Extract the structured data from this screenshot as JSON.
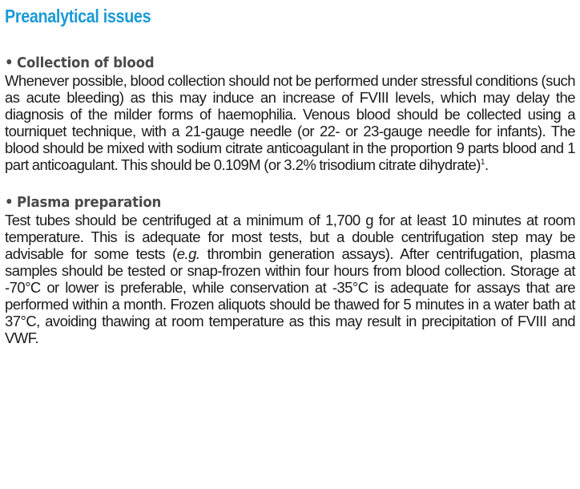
{
  "document": {
    "title": "Preanalytical issues",
    "sections": [
      {
        "bullet": "•",
        "heading": "Collection of blood",
        "paragraph": {
          "text": "Whenever possible, blood collection should not be performed under stressful conditions (such as acute bleeding) as this may induce an increase of FVIII levels, which may delay the diagnosis of the milder forms of haemophilia. Venous blood should be collected using a tourniquet technique, with a 21-gauge needle (or 22- or 23-gauge needle for infants). The blood should be mixed with sodium citrate anticoagulant in the proportion 9 parts blood and 1 part anticoagulant. This should be 0.109M (or 3.2% trisodium citrate dihydrate)",
          "superscript": "1",
          "end": "."
        }
      },
      {
        "bullet": "•",
        "heading": "Plasma preparation",
        "paragraph": {
          "before_italic": "Test tubes should be centrifuged at a minimum of 1,700 g for at least 10 minutes at room temperature. This is adequate for most tests, but a double centrifugation step may be advisable for some tests (",
          "italic": "e.g.",
          "after_italic": " thrombin generation assays). After centrifugation, plasma samples should be tested or snap-frozen within four hours from blood collection. Storage at -70°C or lower is preferable, while conservation at -35°C is adequate for assays that are performed within a month. Frozen aliquots should be thawed for 5 minutes in a water bath at 37°C, avoiding thawing at room temperature as this may result in precipitation of FVIII and VWF."
        }
      }
    ]
  }
}
